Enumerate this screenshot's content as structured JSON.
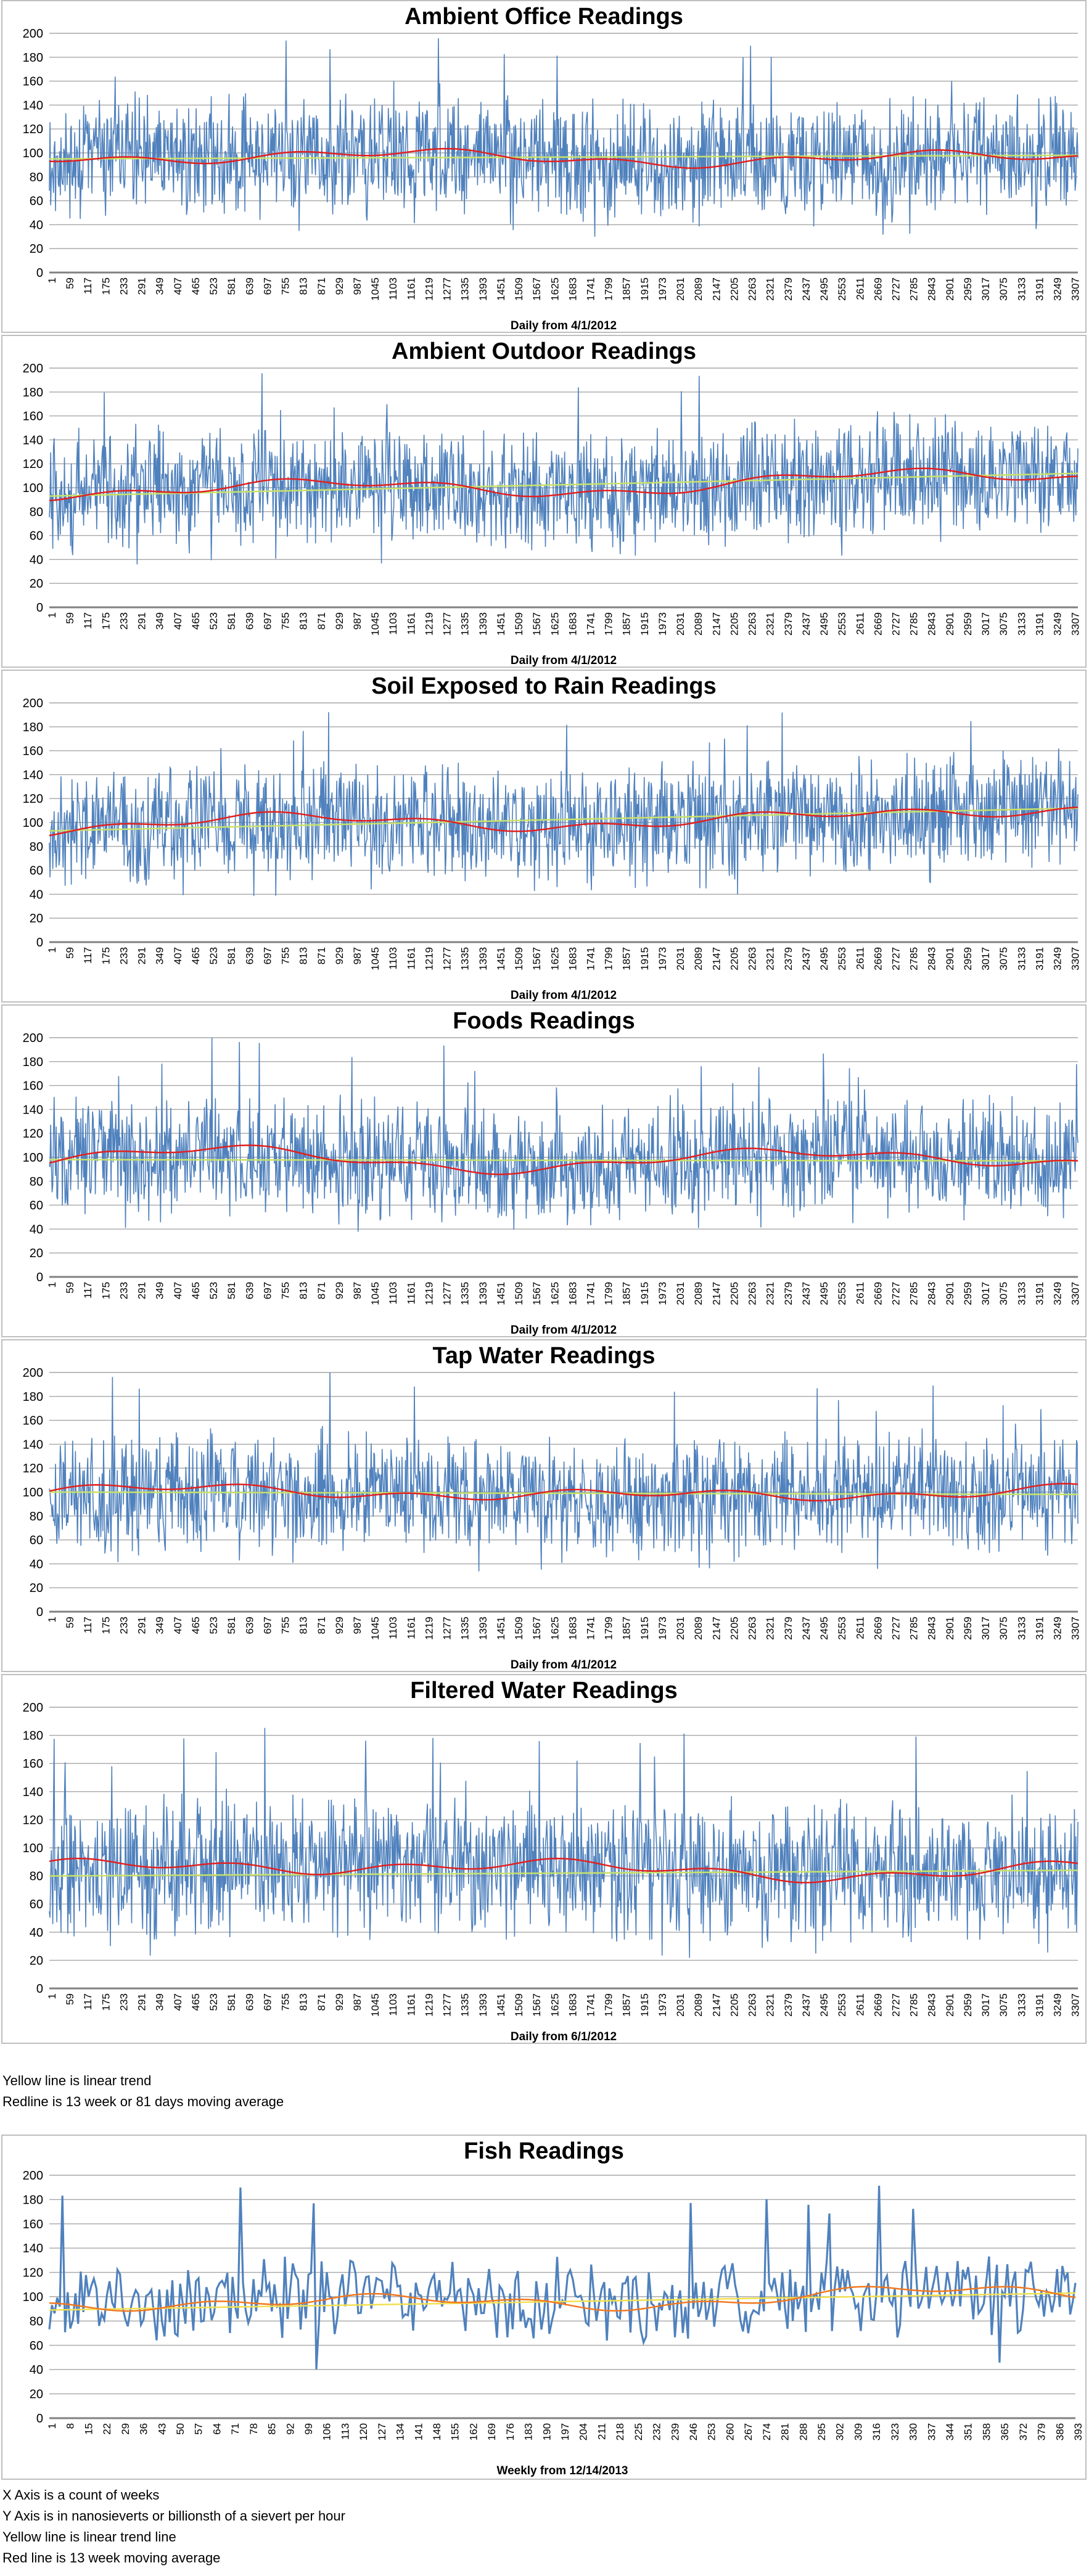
{
  "charts": [
    {
      "title": "Ambient Office Readings",
      "xlabel": "Daily from 4/1/2012",
      "base": 96,
      "trend_start": 95,
      "trend_end": 98,
      "days": 3307
    },
    {
      "title": "Ambient Outdoor Readings",
      "xlabel": "Daily from 4/1/2012",
      "base": 100,
      "trend_start": 93,
      "trend_end": 112,
      "days": 3307
    },
    {
      "title": "Soil Exposed to Rain Readings",
      "xlabel": "Daily from 4/1/2012",
      "base": 100,
      "trend_start": 93,
      "trend_end": 112,
      "days": 3307
    },
    {
      "title": "Foods Readings",
      "xlabel": "Daily from 4/1/2012",
      "base": 98,
      "trend_start": 98,
      "trend_end": 97,
      "days": 3307
    },
    {
      "title": "Tap Water Readings",
      "xlabel": "Daily from 4/1/2012",
      "base": 99,
      "trend_start": 100,
      "trend_end": 98,
      "days": 3307
    },
    {
      "title": "Filtered Water Readings",
      "xlabel": "Daily from 6/1/2012",
      "base": 84,
      "trend_start": 80,
      "trend_end": 84,
      "days": 3307
    }
  ],
  "chart_data": [
    {
      "type": "line",
      "title": "Ambient Office Readings",
      "xlabel": "Daily from 4/1/2012",
      "ylim": [
        0,
        200
      ],
      "yticks": [
        0,
        20,
        40,
        60,
        80,
        100,
        120,
        140,
        160,
        180,
        200
      ],
      "series": [
        {
          "color": "#4f81bd",
          "approx_mean": 96
        },
        {
          "color": "#e02020",
          "approx_mean": 96
        },
        {
          "color": "#c8e26a",
          "values": [
            95,
            98
          ]
        }
      ]
    },
    {
      "type": "line",
      "title": "Ambient Outdoor Readings",
      "xlabel": "Daily from 4/1/2012",
      "ylim": [
        0,
        200
      ],
      "yticks": [
        0,
        20,
        40,
        60,
        80,
        100,
        120,
        140,
        160,
        180,
        200
      ],
      "series": [
        {
          "color": "#4f81bd",
          "approx_mean": 102
        },
        {
          "color": "#e02020",
          "approx_mean": 102
        },
        {
          "color": "#c8e26a",
          "values": [
            93,
            112
          ]
        }
      ]
    },
    {
      "type": "line",
      "title": "Soil Exposed to Rain Readings",
      "xlabel": "Daily from 4/1/2012",
      "ylim": [
        0,
        200
      ],
      "yticks": [
        0,
        20,
        40,
        60,
        80,
        100,
        120,
        140,
        160,
        180,
        200
      ],
      "series": [
        {
          "color": "#4f81bd",
          "approx_mean": 102
        },
        {
          "color": "#e02020",
          "approx_mean": 102
        },
        {
          "color": "#c8e26a",
          "values": [
            93,
            112
          ]
        }
      ]
    },
    {
      "type": "line",
      "title": "Foods Readings",
      "xlabel": "Daily from 4/1/2012",
      "ylim": [
        0,
        200
      ],
      "yticks": [
        0,
        20,
        40,
        60,
        80,
        100,
        120,
        140,
        160,
        180,
        200
      ],
      "series": [
        {
          "color": "#4f81bd",
          "approx_mean": 98
        },
        {
          "color": "#e02020",
          "approx_mean": 98
        },
        {
          "color": "#c8e26a",
          "values": [
            98,
            97
          ]
        }
      ]
    },
    {
      "type": "line",
      "title": "Tap Water Readings",
      "xlabel": "Daily from 4/1/2012",
      "ylim": [
        0,
        200
      ],
      "yticks": [
        0,
        20,
        40,
        60,
        80,
        100,
        120,
        140,
        160,
        180,
        200
      ],
      "series": [
        {
          "color": "#4f81bd",
          "approx_mean": 99
        },
        {
          "color": "#e02020",
          "approx_mean": 99
        },
        {
          "color": "#c8e26a",
          "values": [
            100,
            98
          ]
        }
      ]
    },
    {
      "type": "line",
      "title": "Filtered Water Readings",
      "xlabel": "Daily from 6/1/2012",
      "ylim": [
        0,
        200
      ],
      "yticks": [
        0,
        20,
        40,
        60,
        80,
        100,
        120,
        140,
        160,
        180,
        200
      ],
      "series": [
        {
          "color": "#4f81bd",
          "approx_mean": 84
        },
        {
          "color": "#e02020",
          "approx_mean": 84
        },
        {
          "color": "#c8e26a",
          "values": [
            80,
            84
          ]
        }
      ]
    },
    {
      "type": "line",
      "title": "Fish Readings",
      "xlabel": "Weekly from 12/14/2013",
      "ylim": [
        0,
        200
      ],
      "yticks": [
        0,
        20,
        40,
        60,
        80,
        100,
        120,
        140,
        160,
        180,
        200
      ],
      "x_ticks": [
        1,
        8,
        15,
        22,
        29,
        36,
        43,
        50,
        57,
        64,
        71,
        78,
        85,
        92,
        99,
        106,
        113,
        120,
        127,
        134,
        141,
        148,
        155,
        162,
        169,
        176,
        183,
        190,
        197,
        204,
        211,
        218,
        225,
        232,
        239,
        246,
        253,
        260,
        267,
        274,
        281,
        288,
        295,
        302,
        309,
        316,
        323,
        330,
        337,
        344,
        351,
        358,
        365,
        372,
        379,
        386,
        393
      ],
      "series": [
        {
          "color": "#4f81bd",
          "approx_mean": 98
        },
        {
          "color": "#f07820",
          "approx_mean": 98
        },
        {
          "color": "#f2e050",
          "values": [
            89,
            103
          ]
        }
      ]
    }
  ],
  "daily_x_ticks": [
    1,
    59,
    117,
    175,
    233,
    291,
    349,
    407,
    465,
    523,
    581,
    639,
    697,
    755,
    813,
    871,
    929,
    987,
    1045,
    1103,
    1161,
    1219,
    1277,
    1335,
    1393,
    1451,
    1509,
    1567,
    1625,
    1683,
    1741,
    1799,
    1857,
    1915,
    1973,
    2031,
    2089,
    2147,
    2205,
    2263,
    2321,
    2379,
    2437,
    2495,
    2553,
    2611,
    2669,
    2727,
    2785,
    2843,
    2901,
    2959,
    3017,
    3075,
    3133,
    3191,
    3249,
    3307
  ],
  "daily_x_ticks_filtered": [
    1,
    59,
    117,
    175,
    233,
    291,
    349,
    407,
    465,
    523,
    581,
    639,
    697,
    755,
    813,
    871,
    929,
    987,
    1045,
    1103,
    1161,
    1219,
    1277,
    1335,
    1393,
    1451,
    1509,
    1567,
    1625,
    1683,
    1741,
    1799,
    1857,
    1915,
    1973,
    2031,
    2089,
    2147,
    2205,
    2263,
    2321,
    2379,
    2437,
    2495,
    2553,
    2611,
    2669,
    2727,
    2785,
    2843,
    2901,
    2959,
    3017,
    3075,
    3133,
    3191,
    3249,
    3307
  ],
  "y_ticks": [
    0,
    20,
    40,
    60,
    80,
    100,
    120,
    140,
    160,
    180,
    200
  ],
  "notes1": [
    "Yellow line is linear trend",
    "Redline is 13 week or 81 days moving average"
  ],
  "fish": {
    "title": "Fish Readings",
    "xlabel": "Weekly from 12/14/2013"
  },
  "notes2": [
    "X Axis is a count of weeks",
    "Y Axis is in nanosieverts or billionsth of a sievert per hour",
    "Yellow line is linear trend line",
    "Red line is 13 week moving average"
  ],
  "colors": {
    "series": "#4f81bd",
    "moving_avg": "#e02020",
    "trend": "#c8e26a",
    "fish_avg": "#f07820",
    "fish_trend": "#f2e050",
    "grid": "#a6a6a6"
  }
}
